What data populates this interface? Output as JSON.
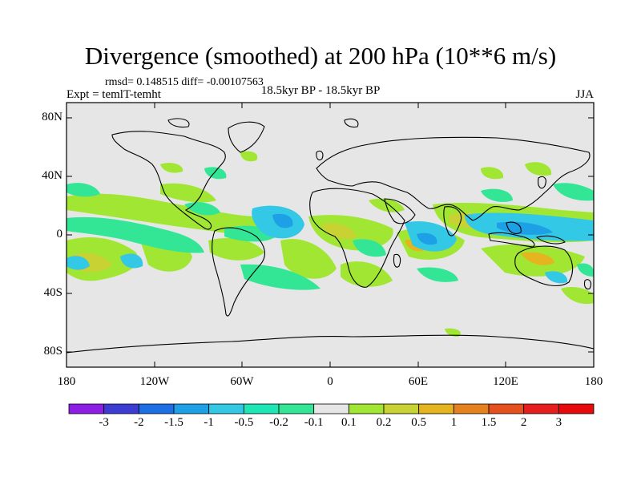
{
  "title": "Divergence (smoothed) at 200 hPa (10**6 m/s)",
  "stats": "rmsd= 0.148515 diff= -0.00107563",
  "expt": "Expt = temlT-temht",
  "period": "18.5kyr BP - 18.5kyr BP",
  "season": "JJA",
  "lat_labels": [
    "80N",
    "40N",
    "0",
    "40S",
    "80S"
  ],
  "lon_labels": [
    "180",
    "120W",
    "60W",
    "0",
    "60E",
    "120E",
    "180"
  ],
  "colorbar": {
    "labels": [
      "-3",
      "-2",
      "-1.5",
      "-1",
      "-0.5",
      "-0.2",
      "-0.1",
      "0.1",
      "0.2",
      "0.5",
      "1",
      "1.5",
      "2",
      "3"
    ],
    "colors": [
      "#8c1ee6",
      "#3c3cd2",
      "#1e6ee6",
      "#1ea0e6",
      "#32c8e6",
      "#1ee6b4",
      "#32e696",
      "#e6e6e6",
      "#a0e632",
      "#c8d232",
      "#e6b41e",
      "#e6821e",
      "#e6501e",
      "#e61e1e",
      "#e60a0a"
    ]
  },
  "colors": {
    "ocean_land": "#e6e6e6",
    "frame": "#000000"
  }
}
